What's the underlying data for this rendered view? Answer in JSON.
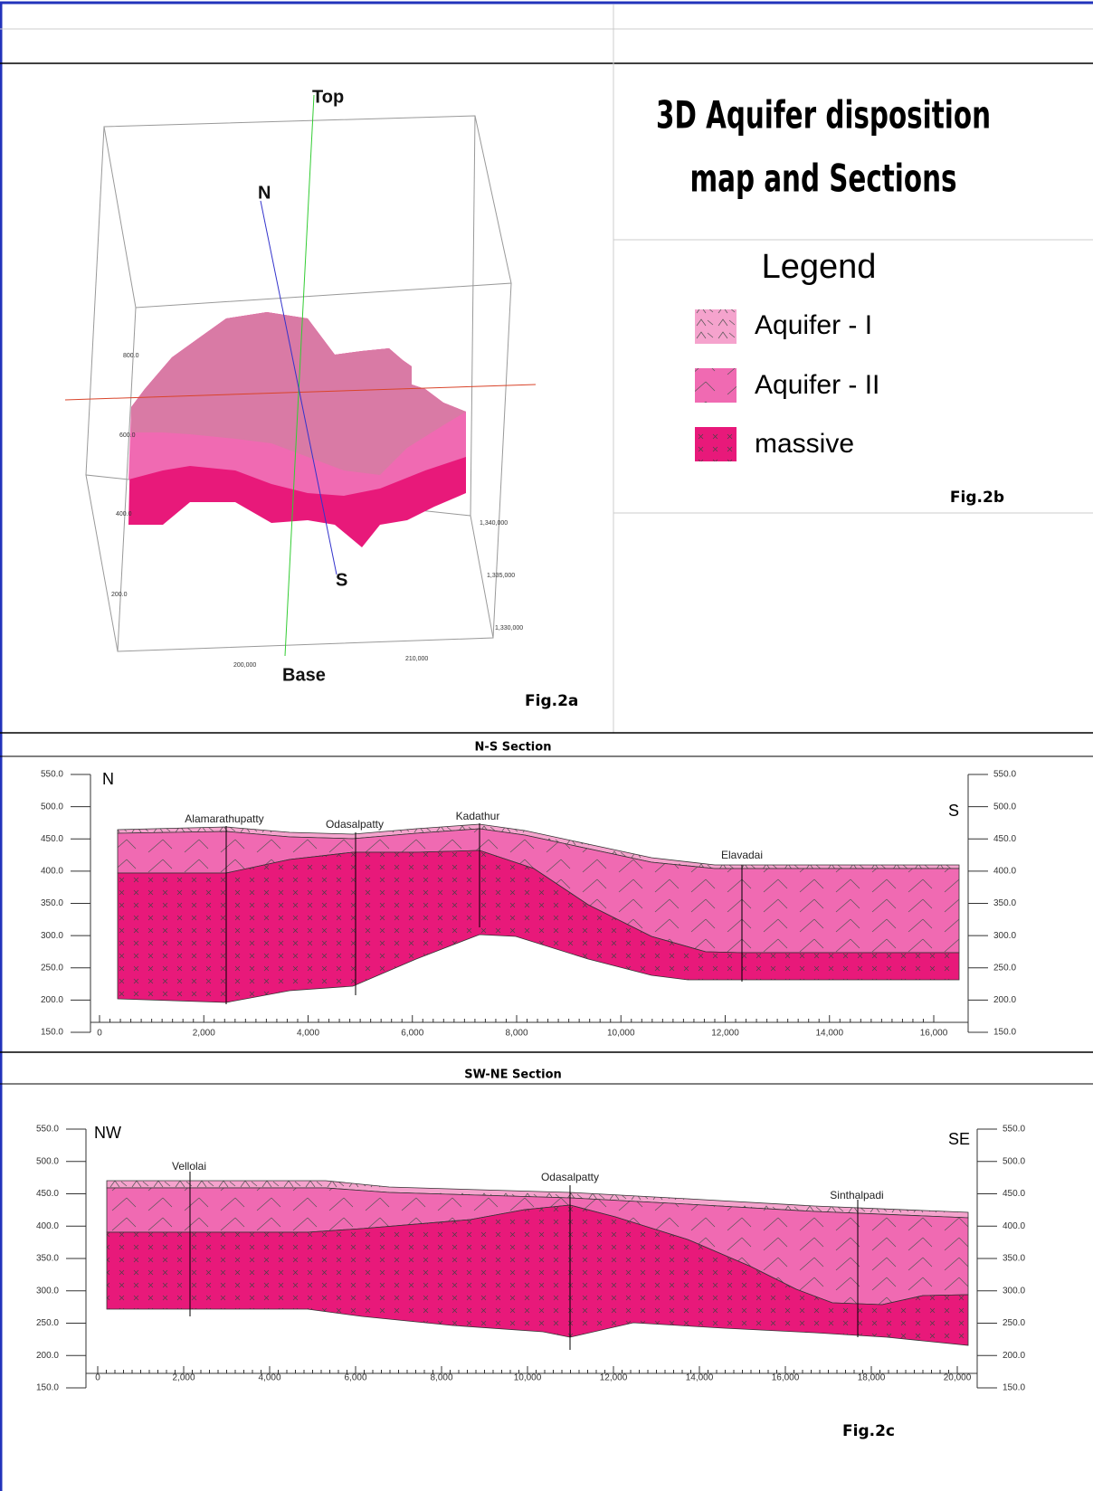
{
  "fig2a": {
    "labels": {
      "top": "Top",
      "north": "N",
      "south": "S",
      "base": "Base"
    },
    "vertical_axis": [
      "800.0",
      "600.0",
      "400.0",
      "200.0"
    ],
    "northing_axis": [
      "1,340,000",
      "1,335,000",
      "1,330,000"
    ],
    "easting_axis": [
      "200,000",
      "210,000"
    ],
    "caption": "Fig.2a"
  },
  "fig2b": {
    "title": [
      "3D Aquifer disposition",
      "map and Sections"
    ],
    "legend": {
      "title": "Legend",
      "items": [
        "Aquifer - I",
        "Aquifer - II",
        "massive"
      ]
    },
    "caption": "Fig.2b"
  },
  "sections": [
    {
      "title": "N-S Section",
      "left_label": "N",
      "right_label": "S",
      "yticks": [
        "550.0",
        "500.0",
        "450.0",
        "400.0",
        "350.0",
        "300.0",
        "250.0",
        "200.0",
        "150.0"
      ],
      "xticks": [
        "0",
        "2,000",
        "4,000",
        "6,000",
        "8,000",
        "10,000",
        "12,000",
        "14,000",
        "16,000"
      ],
      "wells": [
        "Alamarathupatty",
        "Odasalpatty",
        "Kadathur",
        "Elavadai"
      ]
    },
    {
      "title": "SW-NE Section",
      "left_label": "NW",
      "right_label": "SE",
      "yticks": [
        "550.0",
        "500.0",
        "450.0",
        "400.0",
        "350.0",
        "300.0",
        "250.0",
        "200.0",
        "150.0"
      ],
      "xticks": [
        "0",
        "2,000",
        "4,000",
        "6,000",
        "8,000",
        "10,000",
        "12,000",
        "14,000",
        "16,000",
        "18,000",
        "20,000"
      ],
      "wells": [
        "Vellolai",
        "Odasalpatty",
        "Sinthalpadi"
      ],
      "caption": "Fig.2c"
    }
  ]
}
